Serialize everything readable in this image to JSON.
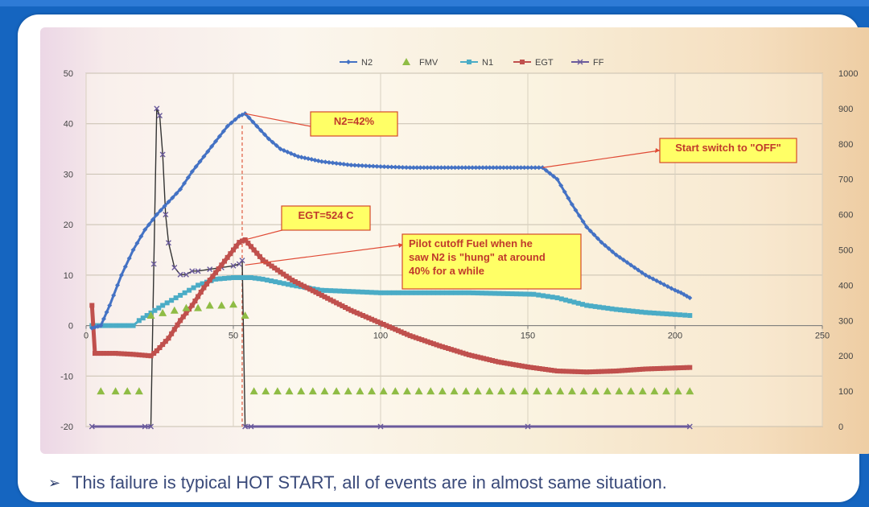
{
  "slide": {
    "bullet_symbol": "➢",
    "bullet_text": "This failure is typical HOT START, all of events are in almost same situation."
  },
  "annotations": {
    "n2": "N2=42%",
    "egt": "EGT=524 C",
    "switch": "Start switch to \"OFF\"",
    "pilot_lines": [
      "Pilot cutoff Fuel when he",
      "saw N2 is \"hung\" at around",
      "40% for a while"
    ]
  },
  "colors": {
    "n2": "#4472c4",
    "fmv": "#8fbc45",
    "n1": "#4bacc6",
    "egt": "#c0504d",
    "ff": "#6a5a9c",
    "annotation_fill": "#ffff66",
    "annotation_border": "#d44a2b",
    "annotation_text": "#c0392b",
    "callout_line": "#e04a35"
  },
  "chart_data": {
    "type": "line",
    "title": "",
    "xlabel": "",
    "ylabel": "",
    "xlim": [
      0,
      250
    ],
    "ylim_left": [
      -20,
      50
    ],
    "ylim_right": [
      0,
      1000
    ],
    "x_ticks": [
      0,
      50,
      100,
      150,
      200,
      250
    ],
    "y_ticks_left": [
      50,
      40,
      30,
      20,
      10,
      0,
      -10,
      -20
    ],
    "y_ticks_right": [
      1000,
      900,
      800,
      700,
      600,
      500,
      400,
      300,
      200,
      100,
      0
    ],
    "legend": [
      "N2",
      "FMV",
      "N1",
      "EGT",
      "FF"
    ],
    "legend_position": "top",
    "marker_line_x": 53,
    "series": [
      {
        "name": "N2",
        "axis": "left",
        "marker": "diamond",
        "points": [
          [
            2,
            -0.5
          ],
          [
            5,
            0
          ],
          [
            8,
            4
          ],
          [
            12,
            10
          ],
          [
            16,
            15
          ],
          [
            20,
            19
          ],
          [
            24,
            22
          ],
          [
            28,
            24.5
          ],
          [
            32,
            27
          ],
          [
            36,
            30.5
          ],
          [
            40,
            33.5
          ],
          [
            44,
            36.5
          ],
          [
            48,
            39.5
          ],
          [
            52,
            41.5
          ],
          [
            54,
            42
          ],
          [
            58,
            39.5
          ],
          [
            62,
            37
          ],
          [
            66,
            35
          ],
          [
            72,
            33.5
          ],
          [
            80,
            32.5
          ],
          [
            90,
            31.8
          ],
          [
            100,
            31.5
          ],
          [
            110,
            31.3
          ],
          [
            130,
            31.3
          ],
          [
            150,
            31.3
          ],
          [
            155,
            31.3
          ],
          [
            160,
            29
          ],
          [
            165,
            24
          ],
          [
            170,
            19.5
          ],
          [
            175,
            16.5
          ],
          [
            180,
            14
          ],
          [
            185,
            12
          ],
          [
            190,
            10
          ],
          [
            195,
            8.5
          ],
          [
            200,
            7
          ],
          [
            202,
            6.5
          ],
          [
            205,
            5.5
          ]
        ]
      },
      {
        "name": "FMV",
        "axis": "left",
        "marker": "triangle",
        "points": [
          [
            5,
            -13
          ],
          [
            10,
            -13
          ],
          [
            14,
            -13
          ],
          [
            18,
            -13
          ],
          [
            22,
            2
          ],
          [
            26,
            2.5
          ],
          [
            30,
            3
          ],
          [
            34,
            3.5
          ],
          [
            38,
            3.5
          ],
          [
            42,
            4
          ],
          [
            46,
            4
          ],
          [
            50,
            4.2
          ],
          [
            54,
            2
          ],
          [
            57,
            -13
          ],
          [
            61,
            -13
          ],
          [
            65,
            -13
          ],
          [
            69,
            -13
          ],
          [
            73,
            -13
          ],
          [
            77,
            -13
          ],
          [
            81,
            -13
          ],
          [
            85,
            -13
          ],
          [
            89,
            -13
          ],
          [
            93,
            -13
          ],
          [
            97,
            -13
          ],
          [
            101,
            -13
          ],
          [
            105,
            -13
          ],
          [
            109,
            -13
          ],
          [
            113,
            -13
          ],
          [
            117,
            -13
          ],
          [
            121,
            -13
          ],
          [
            125,
            -13
          ],
          [
            129,
            -13
          ],
          [
            133,
            -13
          ],
          [
            137,
            -13
          ],
          [
            141,
            -13
          ],
          [
            145,
            -13
          ],
          [
            149,
            -13
          ],
          [
            153,
            -13
          ],
          [
            157,
            -13
          ],
          [
            161,
            -13
          ],
          [
            165,
            -13
          ],
          [
            169,
            -13
          ],
          [
            173,
            -13
          ],
          [
            177,
            -13
          ],
          [
            181,
            -13
          ],
          [
            185,
            -13
          ],
          [
            189,
            -13
          ],
          [
            193,
            -13
          ],
          [
            197,
            -13
          ],
          [
            201,
            -13
          ],
          [
            205,
            -13
          ]
        ]
      },
      {
        "name": "N1",
        "axis": "left",
        "marker": "square",
        "points": [
          [
            2,
            0
          ],
          [
            10,
            0
          ],
          [
            16,
            0
          ],
          [
            18,
            1
          ],
          [
            22,
            2.5
          ],
          [
            26,
            4
          ],
          [
            32,
            6
          ],
          [
            38,
            8
          ],
          [
            44,
            9.2
          ],
          [
            50,
            9.5
          ],
          [
            56,
            9.5
          ],
          [
            60,
            9.2
          ],
          [
            70,
            8
          ],
          [
            80,
            7
          ],
          [
            100,
            6.5
          ],
          [
            130,
            6.5
          ],
          [
            152,
            6.2
          ],
          [
            160,
            5.5
          ],
          [
            170,
            4
          ],
          [
            180,
            3.2
          ],
          [
            190,
            2.6
          ],
          [
            200,
            2.2
          ],
          [
            205,
            2
          ]
        ]
      },
      {
        "name": "EGT",
        "axis": "left",
        "marker": "square",
        "points": [
          [
            2,
            4
          ],
          [
            3,
            -5.5
          ],
          [
            10,
            -5.5
          ],
          [
            16,
            -5.7
          ],
          [
            22,
            -6
          ],
          [
            24,
            -5
          ],
          [
            28,
            -2.5
          ],
          [
            32,
            1
          ],
          [
            36,
            4
          ],
          [
            40,
            7.5
          ],
          [
            44,
            10.5
          ],
          [
            48,
            13.5
          ],
          [
            52,
            16.5
          ],
          [
            54,
            17
          ],
          [
            57,
            15
          ],
          [
            60,
            13
          ],
          [
            65,
            11
          ],
          [
            70,
            9
          ],
          [
            80,
            6
          ],
          [
            90,
            3
          ],
          [
            100,
            0.5
          ],
          [
            110,
            -2
          ],
          [
            120,
            -4
          ],
          [
            130,
            -5.8
          ],
          [
            140,
            -7.2
          ],
          [
            150,
            -8.2
          ],
          [
            160,
            -9
          ],
          [
            170,
            -9.2
          ],
          [
            180,
            -9
          ],
          [
            190,
            -8.6
          ],
          [
            200,
            -8.4
          ],
          [
            205,
            -8.3
          ]
        ]
      },
      {
        "name": "FF",
        "axis": "right",
        "marker": "cross",
        "points": [
          [
            2,
            0
          ],
          [
            20,
            0
          ],
          [
            22,
            0
          ],
          [
            23,
            460
          ],
          [
            24,
            900
          ],
          [
            25,
            880
          ],
          [
            26,
            770
          ],
          [
            27,
            600
          ],
          [
            28,
            520
          ],
          [
            30,
            450
          ],
          [
            32,
            430
          ],
          [
            34,
            430
          ],
          [
            36,
            440
          ],
          [
            38,
            440
          ],
          [
            42,
            445
          ],
          [
            46,
            450
          ],
          [
            50,
            455
          ],
          [
            52,
            460
          ],
          [
            53,
            470
          ],
          [
            54,
            0
          ],
          [
            56,
            0
          ],
          [
            100,
            0
          ],
          [
            150,
            0
          ],
          [
            205,
            0
          ]
        ]
      }
    ]
  }
}
